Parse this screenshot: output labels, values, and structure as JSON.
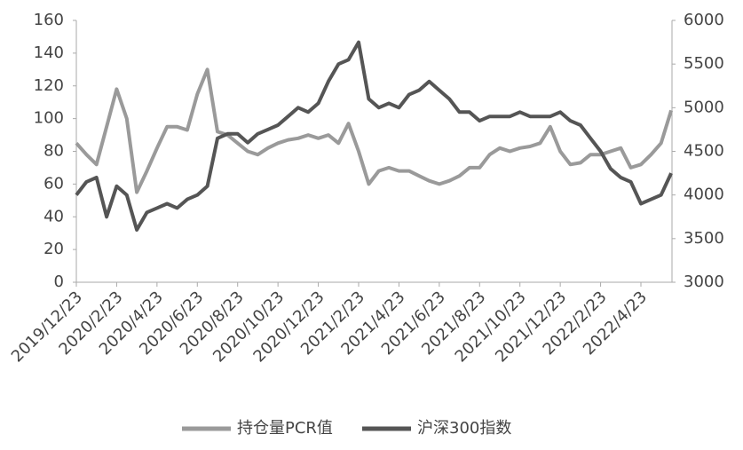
{
  "chart_data": {
    "type": "line",
    "categories": [
      "2019/12/23",
      null,
      null,
      null,
      "2020/2/23",
      null,
      null,
      null,
      "2020/4/23",
      null,
      null,
      null,
      "2020/6/23",
      null,
      null,
      null,
      "2020/8/23",
      null,
      null,
      null,
      "2020/10/23",
      null,
      null,
      null,
      "2020/12/23",
      null,
      null,
      null,
      "2021/2/23",
      null,
      null,
      null,
      "2021/4/23",
      null,
      null,
      null,
      "2021/6/23",
      null,
      null,
      null,
      "2021/8/23",
      null,
      null,
      null,
      "2021/10/23",
      null,
      null,
      null,
      "2021/12/23",
      null,
      null,
      null,
      "2022/2/23",
      null,
      null,
      null,
      "2022/4/23",
      null,
      null,
      null
    ],
    "series": [
      {
        "name": "持仓量PCR值",
        "color": "#9a9a9a",
        "axis": "y",
        "values": [
          85,
          78,
          72,
          95,
          118,
          100,
          55,
          68,
          82,
          95,
          95,
          93,
          115,
          130,
          92,
          90,
          85,
          80,
          78,
          82,
          85,
          87,
          88,
          90,
          88,
          90,
          85,
          97,
          80,
          60,
          68,
          70,
          68,
          68,
          65,
          62,
          60,
          62,
          65,
          70,
          70,
          78,
          82,
          80,
          82,
          83,
          85,
          95,
          80,
          72,
          73,
          78,
          78,
          80,
          82,
          70,
          72,
          78,
          85,
          105
        ]
      },
      {
        "name": "沪深300指数",
        "color": "#555555",
        "axis": "y2",
        "values": [
          4000,
          4150,
          4200,
          3750,
          4100,
          4000,
          3600,
          3800,
          3850,
          3900,
          3850,
          3950,
          4000,
          4100,
          4650,
          4700,
          4700,
          4600,
          4700,
          4750,
          4800,
          4900,
          5000,
          4950,
          5050,
          5300,
          5500,
          5550,
          5750,
          5100,
          5000,
          5050,
          5000,
          5150,
          5200,
          5300,
          5200,
          5100,
          4950,
          4950,
          4850,
          4900,
          4900,
          4900,
          4950,
          4900,
          4900,
          4900,
          4950,
          4850,
          4800,
          4650,
          4500,
          4300,
          4200,
          4150,
          3900,
          3950,
          4000,
          4250
        ]
      }
    ],
    "ylim": [
      0,
      160
    ],
    "yticks": [
      0,
      20,
      40,
      60,
      80,
      100,
      120,
      140,
      160
    ],
    "y2lim": [
      3000,
      6000
    ],
    "y2ticks": [
      3000,
      3500,
      4000,
      4500,
      5000,
      5500,
      6000
    ],
    "grid": false
  }
}
